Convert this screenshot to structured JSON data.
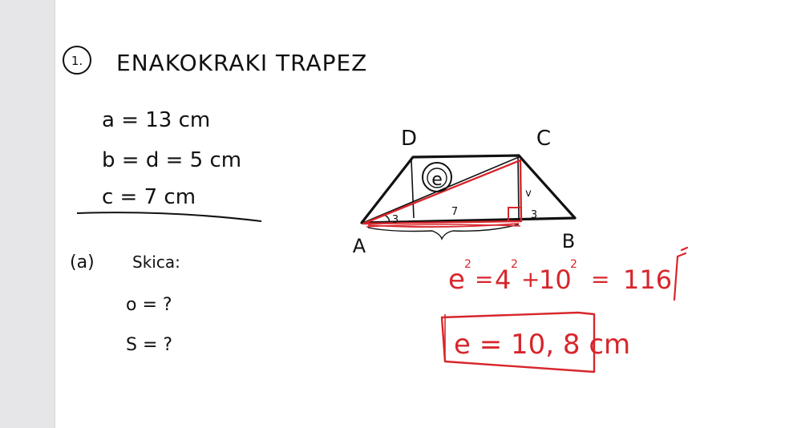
{
  "colors": {
    "ink": "#111111",
    "red_ink": "#d7262c",
    "sidebar": "#e6e6e8"
  },
  "heading": {
    "number": "1.",
    "title": "ENAKOKRAKI TRAPEZ"
  },
  "givens": {
    "a": "a = 13 cm",
    "bd": "b = d = 5 cm",
    "c": "c = 7 cm"
  },
  "task": {
    "label": "(a)",
    "sketch": "Skica:",
    "perimeter": "o = ?",
    "area": "S = ?"
  },
  "diagram": {
    "vertex_d": "D",
    "vertex_c": "C",
    "vertex_a": "A",
    "vertex_b": "B",
    "diagonal_label": "e",
    "base_segment": "7",
    "left_segment": "3",
    "right_segment": "3",
    "height_label": "v"
  },
  "solution": {
    "e_base": "e",
    "e_exp": "2",
    "equals_1": "=",
    "t1_base": "4",
    "t1_exp": "2",
    "plus": "+",
    "t2_base": "10",
    "t2_exp": "2",
    "equals_2": "=",
    "total": "116",
    "result": "e = 10, 8 cm"
  }
}
